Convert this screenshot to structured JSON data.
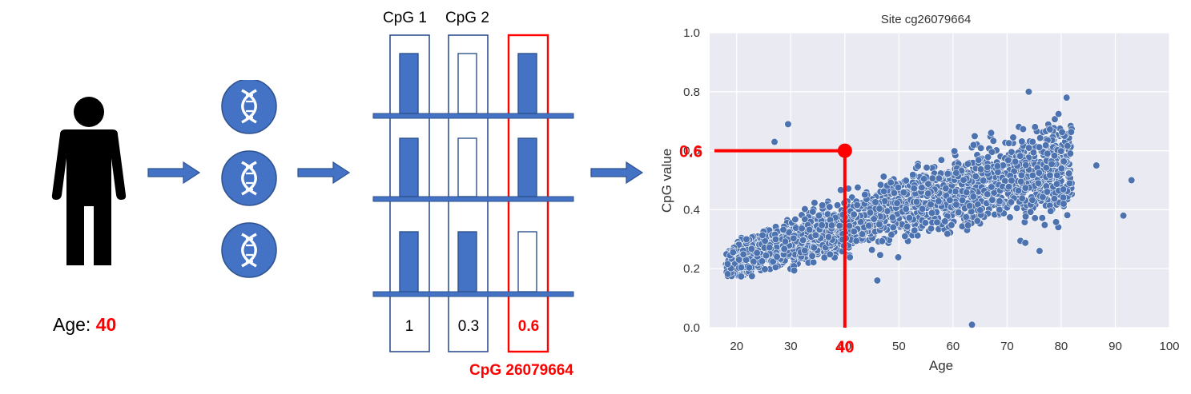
{
  "subject": {
    "age_label": "Age: ",
    "age_value": "40"
  },
  "table": {
    "headers": [
      "CpG 1",
      "CpG 2"
    ],
    "values": [
      "1",
      "0.3",
      "0.6"
    ],
    "highlight_label": "CpG 26079664",
    "bars": [
      {
        "row": 1,
        "columns": [
          "filled",
          "empty",
          "filled"
        ]
      },
      {
        "row": 2,
        "columns": [
          "filled",
          "empty",
          "filled"
        ]
      },
      {
        "row": 3,
        "columns": [
          "filled",
          "filled",
          "empty"
        ]
      }
    ]
  },
  "colors": {
    "accent": "#4472c4",
    "highlight": "#ff0000",
    "plot_bg": "#eaeaf2",
    "point": "#4c72b0"
  },
  "chart_data": {
    "type": "scatter",
    "title": "Site cg26079664",
    "xlabel": "Age",
    "ylabel": "CpG value",
    "xlim": [
      15,
      100
    ],
    "ylim": [
      0.0,
      1.0
    ],
    "xticks": [
      20,
      30,
      40,
      50,
      60,
      70,
      80,
      90,
      100
    ],
    "yticks": [
      0.0,
      0.2,
      0.4,
      0.6,
      0.8,
      1.0
    ],
    "grid": true,
    "highlight_point": {
      "x": 40,
      "y": 0.6,
      "x_label": "40",
      "y_label": "0.6"
    },
    "outliers": [
      [
        29.5,
        0.69
      ],
      [
        63.5,
        0.01
      ],
      [
        46,
        0.16
      ],
      [
        91.5,
        0.38
      ],
      [
        93,
        0.5
      ],
      [
        81,
        0.78
      ],
      [
        74,
        0.8
      ],
      [
        86.5,
        0.55
      ],
      [
        76,
        0.26
      ],
      [
        27,
        0.63
      ]
    ]
  }
}
